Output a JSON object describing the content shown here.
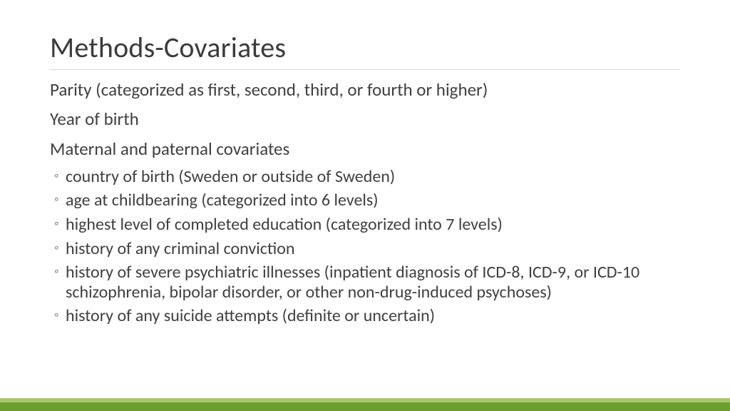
{
  "slide": {
    "title": "Methods-Covariates",
    "title_fontsize": 40,
    "title_color": "#3b3b3b",
    "rule_color": "#d9d9d9",
    "body_color": "#404040",
    "body_fontsize": 25,
    "sub_fontsize": 24,
    "bullet_color": "#7f7f7f",
    "background_color": "#ffffff",
    "top_items": [
      "Parity (categorized as first, second, third, or fourth or higher)",
      "Year of birth",
      "Maternal and paternal covariates"
    ],
    "sub_items": [
      "country of birth (Sweden or outside of Sweden)",
      "age at childbearing (categorized into 6 levels)",
      "highest level of completed education (categorized into 7 levels)",
      "history of any criminal conviction",
      "history of severe psychiatric illnesses (inpatient diagnosis of ICD-8, ICD-9, or ICD-10 schizophrenia, bipolar disorder, or other non-drug-induced psychoses)",
      "history of any suicide attempts (definite or uncertain)"
    ],
    "accent": {
      "top_color": "#a8c76a",
      "bottom_color": "#6b9e2e",
      "top_height": 6,
      "bottom_height": 12
    }
  }
}
